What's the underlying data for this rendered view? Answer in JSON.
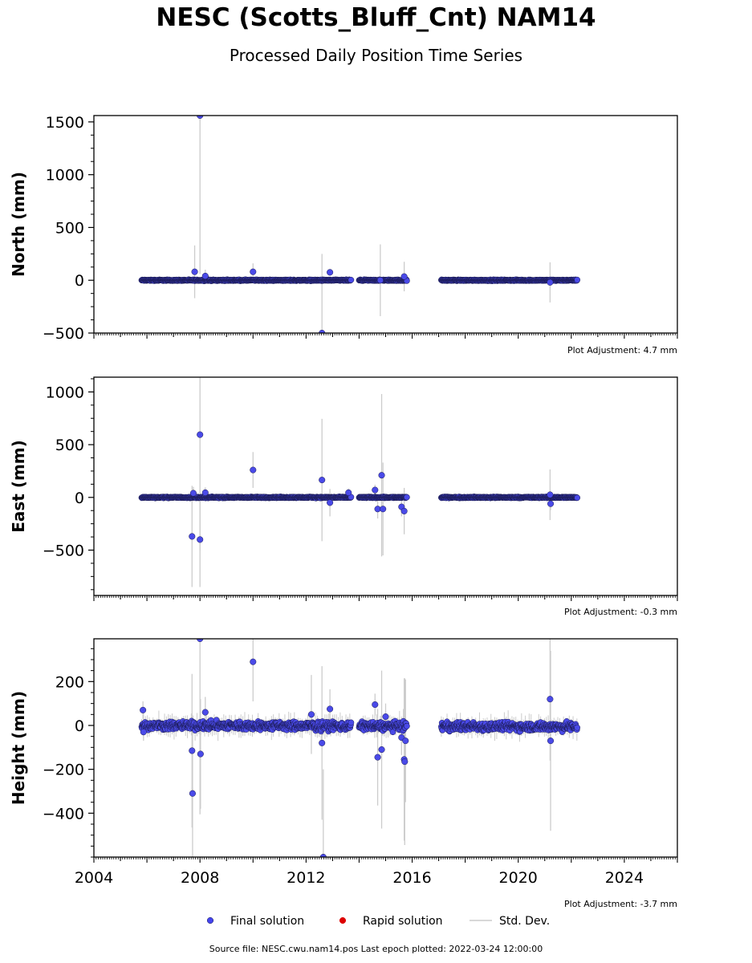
{
  "header": {
    "title": "NESC (Scotts_Bluff_Cnt) NAM14",
    "subtitle": "Processed Daily Position Time Series"
  },
  "footer": {
    "source": "Source file: NESC.cwu.nam14.pos  Last epoch plotted: 2022-03-24 12:00:00"
  },
  "legend": {
    "placement": "bottom-center",
    "items": [
      {
        "label": "Final solution",
        "color": "#4444ee",
        "kind": "dot"
      },
      {
        "label": "Rapid solution",
        "color": "#dd0000",
        "kind": "dot"
      },
      {
        "label": "Std. Dev.",
        "color": "#cccccc",
        "kind": "line"
      }
    ]
  },
  "colors": {
    "final": "#4a4ae8",
    "final_edge": "#1a1a50",
    "rapid": "#dd0000",
    "stddev": "#cccccc"
  },
  "chart_data": [
    {
      "type": "scatter",
      "ylabel": "North (mm)",
      "adjustment": "Plot Adjustment: 4.7 mm",
      "xlim": [
        2004,
        2026
      ],
      "ylim": [
        -500,
        1560
      ],
      "yticks": [
        -500,
        0,
        500,
        1000,
        1500
      ],
      "yminor_step": 125,
      "show_x_labels": false,
      "spread": 8,
      "segments": [
        [
          2005.8,
          2013.7
        ],
        [
          2014.0,
          2015.8
        ],
        [
          2017.1,
          2022.23
        ]
      ],
      "errbar_base": 12,
      "outliers": [
        {
          "x": 2007.8,
          "y": 80,
          "err": 250
        },
        {
          "x": 2008.0,
          "y": 1560,
          "err": 1500
        },
        {
          "x": 2008.2,
          "y": 40,
          "err": 60
        },
        {
          "x": 2010.0,
          "y": 80,
          "err": 80
        },
        {
          "x": 2012.6,
          "y": -500,
          "err": 750
        },
        {
          "x": 2012.9,
          "y": 75,
          "err": 30
        },
        {
          "x": 2014.8,
          "y": 0,
          "err": 340
        },
        {
          "x": 2015.7,
          "y": 35,
          "err": 140
        },
        {
          "x": 2021.2,
          "y": -20,
          "err": 190
        }
      ]
    },
    {
      "type": "scatter",
      "ylabel": "East (mm)",
      "adjustment": "Plot Adjustment: -0.3 mm",
      "xlim": [
        2004,
        2026
      ],
      "ylim": [
        -930,
        1140
      ],
      "yticks": [
        -500,
        0,
        500,
        1000
      ],
      "yminor_step": 125,
      "show_x_labels": false,
      "spread": 8,
      "segments": [
        [
          2005.8,
          2013.7
        ],
        [
          2014.0,
          2015.8
        ],
        [
          2017.1,
          2022.23
        ]
      ],
      "errbar_base": 10,
      "outliers": [
        {
          "x": 2007.7,
          "y": -370,
          "err": 480
        },
        {
          "x": 2007.75,
          "y": 40,
          "err": 60
        },
        {
          "x": 2008.0,
          "y": 595,
          "err": 1100
        },
        {
          "x": 2008.0,
          "y": -400,
          "err": 450
        },
        {
          "x": 2008.2,
          "y": 45,
          "err": 50
        },
        {
          "x": 2010.0,
          "y": 260,
          "err": 170
        },
        {
          "x": 2012.6,
          "y": 165,
          "err": 580
        },
        {
          "x": 2012.9,
          "y": -50,
          "err": 130
        },
        {
          "x": 2013.6,
          "y": 45,
          "err": 40
        },
        {
          "x": 2014.6,
          "y": 70,
          "err": 50
        },
        {
          "x": 2014.7,
          "y": -110,
          "err": 90
        },
        {
          "x": 2014.85,
          "y": 210,
          "err": 770
        },
        {
          "x": 2014.9,
          "y": -110,
          "err": 440
        },
        {
          "x": 2015.6,
          "y": -90,
          "err": 90
        },
        {
          "x": 2015.7,
          "y": -130,
          "err": 220
        },
        {
          "x": 2021.2,
          "y": 25,
          "err": 240
        },
        {
          "x": 2021.22,
          "y": -60,
          "err": 60
        }
      ]
    },
    {
      "type": "scatter",
      "ylabel": "Height (mm)",
      "adjustment": "Plot Adjustment: -3.7 mm",
      "xlim": [
        2004,
        2026
      ],
      "ylim": [
        -600,
        395
      ],
      "yticks": [
        -400,
        -200,
        0,
        200
      ],
      "yminor_step": 50,
      "show_x_labels": true,
      "xticks": [
        2004,
        2008,
        2012,
        2016,
        2020,
        2024
      ],
      "spread": 28,
      "trend": -6,
      "segments": [
        [
          2005.8,
          2013.7
        ],
        [
          2014.0,
          2015.8
        ],
        [
          2017.1,
          2022.23
        ]
      ],
      "errbar_base": 35,
      "outliers": [
        {
          "x": 2005.85,
          "y": 70,
          "err": 40
        },
        {
          "x": 2005.87,
          "y": -30,
          "err": 40
        },
        {
          "x": 2007.7,
          "y": -115,
          "err": 350
        },
        {
          "x": 2007.72,
          "y": -310,
          "err": 300
        },
        {
          "x": 2008.0,
          "y": 395,
          "err": 800
        },
        {
          "x": 2008.02,
          "y": -130,
          "err": 250
        },
        {
          "x": 2008.2,
          "y": 60,
          "err": 70
        },
        {
          "x": 2010.0,
          "y": 290,
          "err": 180
        },
        {
          "x": 2012.2,
          "y": 50,
          "err": 180
        },
        {
          "x": 2012.6,
          "y": -80,
          "err": 350
        },
        {
          "x": 2012.65,
          "y": -600,
          "err": 400
        },
        {
          "x": 2012.9,
          "y": 75,
          "err": 90
        },
        {
          "x": 2014.6,
          "y": 95,
          "err": 50
        },
        {
          "x": 2014.7,
          "y": -145,
          "err": 220
        },
        {
          "x": 2014.85,
          "y": -110,
          "err": 360
        },
        {
          "x": 2015.0,
          "y": 40,
          "err": 60
        },
        {
          "x": 2015.6,
          "y": -55,
          "err": 80
        },
        {
          "x": 2015.7,
          "y": -155,
          "err": 370
        },
        {
          "x": 2015.72,
          "y": -165,
          "err": 380
        },
        {
          "x": 2015.75,
          "y": -70,
          "err": 280
        },
        {
          "x": 2021.2,
          "y": 120,
          "err": 280
        },
        {
          "x": 2021.22,
          "y": -70,
          "err": 410
        }
      ]
    }
  ]
}
